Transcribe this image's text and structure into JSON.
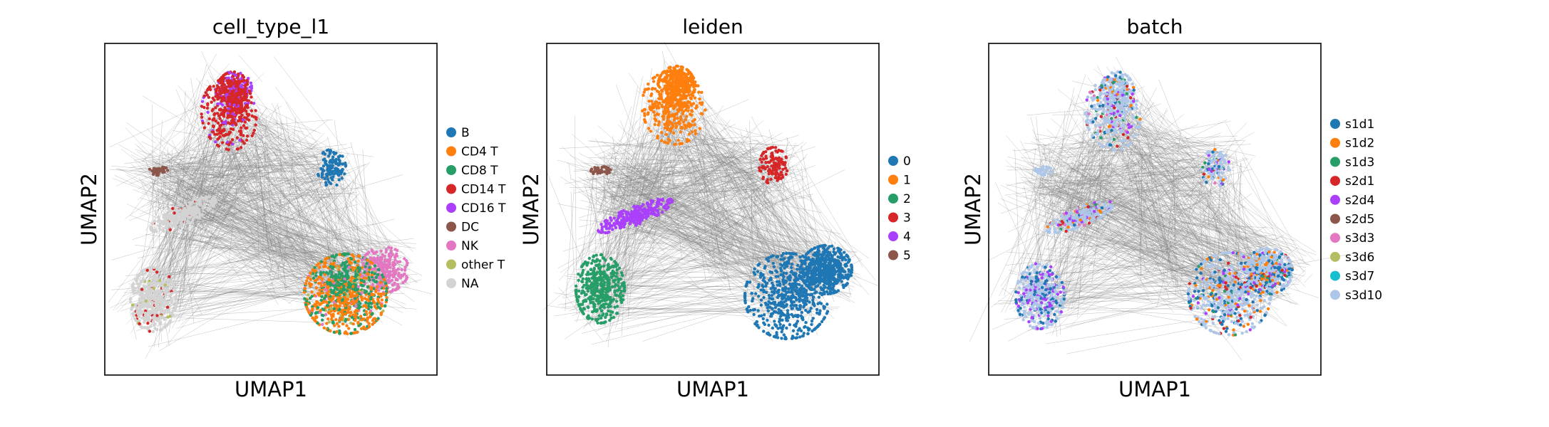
{
  "figure": {
    "panels": [
      {
        "title": "cell_type_l1",
        "xlabel": "UMAP1",
        "ylabel": "UMAP2",
        "legend": [
          {
            "label": "B",
            "color": "#1f77b4"
          },
          {
            "label": "CD4 T",
            "color": "#ff7f0e"
          },
          {
            "label": "CD8 T",
            "color": "#279e68"
          },
          {
            "label": "CD14 T",
            "color": "#d62728"
          },
          {
            "label": "CD16 T",
            "color": "#aa40fc"
          },
          {
            "label": "DC",
            "color": "#8c564b"
          },
          {
            "label": "NK",
            "color": "#e377c2"
          },
          {
            "label": "other T",
            "color": "#b5bd61"
          },
          {
            "label": "NA",
            "color": "#d3d3d3"
          }
        ]
      },
      {
        "title": "leiden",
        "xlabel": "UMAP1",
        "ylabel": "UMAP2",
        "legend": [
          {
            "label": "0",
            "color": "#1f77b4"
          },
          {
            "label": "1",
            "color": "#ff7f0e"
          },
          {
            "label": "2",
            "color": "#279e68"
          },
          {
            "label": "3",
            "color": "#d62728"
          },
          {
            "label": "4",
            "color": "#aa40fc"
          },
          {
            "label": "5",
            "color": "#8c564b"
          }
        ]
      },
      {
        "title": "batch",
        "xlabel": "UMAP1",
        "ylabel": "UMAP2",
        "legend": [
          {
            "label": "s1d1",
            "color": "#1f77b4"
          },
          {
            "label": "s1d2",
            "color": "#ff7f0e"
          },
          {
            "label": "s1d3",
            "color": "#279e68"
          },
          {
            "label": "s2d1",
            "color": "#d62728"
          },
          {
            "label": "s2d4",
            "color": "#aa40fc"
          },
          {
            "label": "s2d5",
            "color": "#8c564b"
          },
          {
            "label": "s3d3",
            "color": "#e377c2"
          },
          {
            "label": "s3d6",
            "color": "#b5bd61"
          },
          {
            "label": "s3d7",
            "color": "#17becf"
          },
          {
            "label": "s3d10",
            "color": "#aec7e8"
          }
        ]
      }
    ]
  },
  "chart_data": [
    {
      "type": "scatter",
      "title": "cell_type_l1",
      "xlabel": "UMAP1",
      "ylabel": "UMAP2",
      "ticks": "none",
      "edges_color": "#808080",
      "legend_position": "right",
      "series": [
        {
          "name": "B",
          "color": "#1f77b4"
        },
        {
          "name": "CD4 T",
          "color": "#ff7f0e"
        },
        {
          "name": "CD8 T",
          "color": "#279e68"
        },
        {
          "name": "CD14 T",
          "color": "#d62728"
        },
        {
          "name": "CD16 T",
          "color": "#aa40fc"
        },
        {
          "name": "DC",
          "color": "#8c564b"
        },
        {
          "name": "NK",
          "color": "#e377c2"
        },
        {
          "name": "other T",
          "color": "#b5bd61"
        },
        {
          "name": "NA",
          "color": "#d3d3d3"
        }
      ]
    },
    {
      "type": "scatter",
      "title": "leiden",
      "xlabel": "UMAP1",
      "ylabel": "UMAP2",
      "ticks": "none",
      "edges_color": "#808080",
      "legend_position": "right",
      "series": [
        {
          "name": "0",
          "color": "#1f77b4"
        },
        {
          "name": "1",
          "color": "#ff7f0e"
        },
        {
          "name": "2",
          "color": "#279e68"
        },
        {
          "name": "3",
          "color": "#d62728"
        },
        {
          "name": "4",
          "color": "#aa40fc"
        },
        {
          "name": "5",
          "color": "#8c564b"
        }
      ]
    },
    {
      "type": "scatter",
      "title": "batch",
      "xlabel": "UMAP1",
      "ylabel": "UMAP2",
      "ticks": "none",
      "edges_color": "#808080",
      "legend_position": "right",
      "series": [
        {
          "name": "s1d1",
          "color": "#1f77b4"
        },
        {
          "name": "s1d2",
          "color": "#ff7f0e"
        },
        {
          "name": "s1d3",
          "color": "#279e68"
        },
        {
          "name": "s2d1",
          "color": "#d62728"
        },
        {
          "name": "s2d4",
          "color": "#aa40fc"
        },
        {
          "name": "s2d5",
          "color": "#8c564b"
        },
        {
          "name": "s3d3",
          "color": "#e377c2"
        },
        {
          "name": "s3d6",
          "color": "#b5bd61"
        },
        {
          "name": "s3d7",
          "color": "#17becf"
        },
        {
          "name": "s3d10",
          "color": "#aec7e8"
        }
      ]
    }
  ]
}
